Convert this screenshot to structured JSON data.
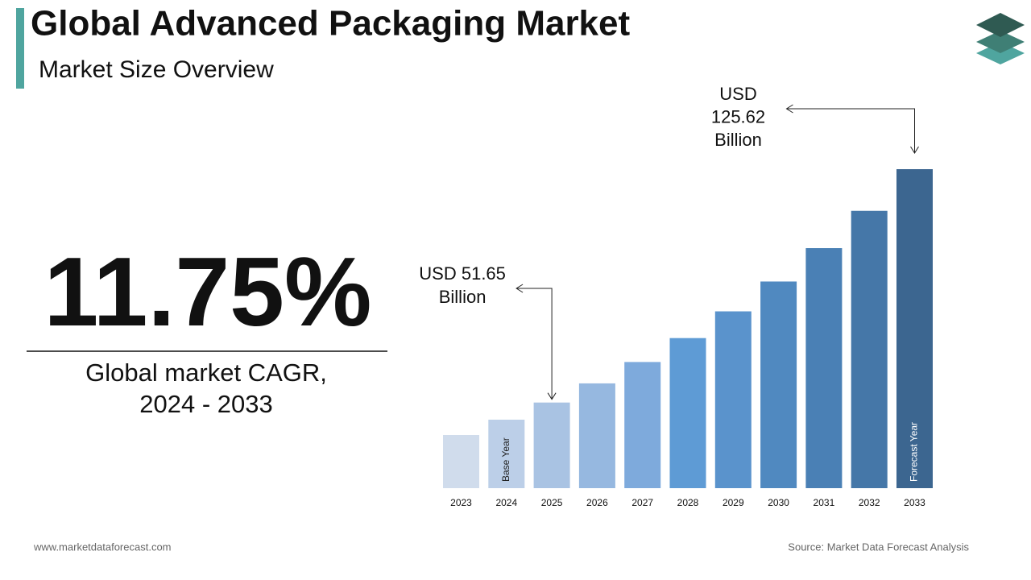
{
  "header": {
    "title": "Global Advanced Packaging Market",
    "subtitle": "Market Size Overview"
  },
  "cagr": {
    "value": "11.75%",
    "label": [
      "Global market CAGR,",
      "2024 - 2033"
    ]
  },
  "chart_data": {
    "type": "bar",
    "categories": [
      "2023",
      "2024",
      "2025",
      "2026",
      "2027",
      "2028",
      "2029",
      "2030",
      "2031",
      "2032",
      "2033"
    ],
    "values": [
      41.36,
      46.22,
      51.65,
      57.72,
      64.5,
      72.08,
      80.55,
      90.01,
      100.59,
      112.41,
      125.62
    ],
    "value_labels": [
      null,
      null,
      [
        "USD 51.65",
        "Billion"
      ],
      null,
      null,
      null,
      null,
      null,
      null,
      null,
      [
        "USD",
        "125.62",
        "Billion"
      ]
    ],
    "bar_notes": [
      null,
      "Base Year",
      null,
      null,
      null,
      null,
      null,
      null,
      null,
      null,
      "Forecast Year"
    ],
    "colors": [
      "#d0dcec",
      "#bccfe8",
      "#a9c3e3",
      "#96b8e0",
      "#7eaadc",
      "#5e9bd5",
      "#5a93cc",
      "#5089c0",
      "#4a80b5",
      "#4577a8",
      "#3c6690"
    ]
  },
  "footer": {
    "website": "www.marketdataforecast.com",
    "source": "Source: Market Data Forecast Analysis"
  }
}
